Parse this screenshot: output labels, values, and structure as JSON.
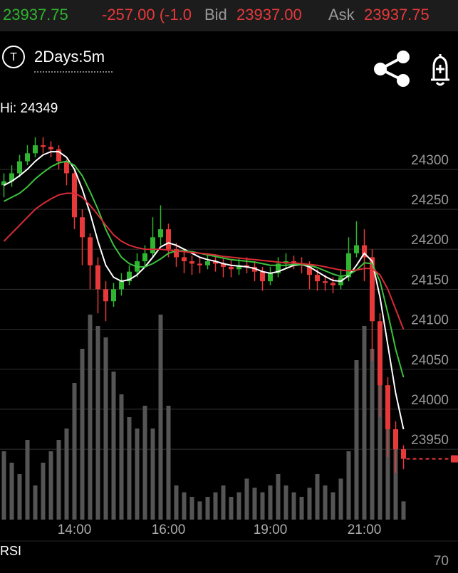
{
  "header": {
    "last": "23937.75",
    "change": "-257.00 (-1.0",
    "bid_label": "Bid",
    "bid": "23937.00",
    "ask_label": "Ask",
    "ask": "23937.75"
  },
  "toolbar": {
    "icon": "T",
    "period": "2Days:5m"
  },
  "chart_data": {
    "type": "candlestick",
    "annotation": "Hi: 24349",
    "categories": [
      null,
      null,
      null,
      null,
      null,
      null,
      null,
      null,
      null,
      "14:00",
      null,
      null,
      null,
      null,
      null,
      null,
      null,
      null,
      null,
      null,
      null,
      "16:00",
      null,
      null,
      null,
      null,
      null,
      null,
      null,
      null,
      null,
      null,
      null,
      null,
      "19:00",
      null,
      null,
      null,
      null,
      null,
      null,
      null,
      null,
      null,
      null,
      null,
      "21:00",
      null,
      null,
      null,
      null,
      null
    ],
    "open": [
      24280,
      24285,
      24295,
      24310,
      24320,
      24330,
      24328,
      24325,
      24310,
      24295,
      24240,
      24215,
      24180,
      24150,
      24135,
      24150,
      24160,
      24172,
      24185,
      24195,
      24215,
      24225,
      24200,
      24190,
      24185,
      24182,
      24180,
      24185,
      24182,
      24178,
      24175,
      24180,
      24178,
      24172,
      24160,
      24170,
      24182,
      24185,
      24182,
      24180,
      24168,
      24160,
      24158,
      24155,
      24165,
      24195,
      24205,
      24190,
      24110,
      24030,
      23975,
      23950
    ],
    "high": [
      24295,
      24305,
      24318,
      24330,
      24340,
      24340,
      24335,
      24330,
      24312,
      24300,
      24250,
      24220,
      24190,
      24160,
      24158,
      24170,
      24180,
      24195,
      24205,
      24240,
      24255,
      24232,
      24208,
      24198,
      24192,
      24190,
      24195,
      24192,
      24188,
      24186,
      24190,
      24190,
      24185,
      24178,
      24178,
      24190,
      24195,
      24192,
      24190,
      24185,
      24175,
      24168,
      24165,
      24175,
      24215,
      24235,
      24225,
      24200,
      24120,
      24040,
      23985,
      23955
    ],
    "low": [
      24265,
      24278,
      24290,
      24305,
      24315,
      24320,
      24315,
      24300,
      24280,
      24225,
      24180,
      24150,
      24120,
      24110,
      24128,
      24142,
      24155,
      24165,
      24178,
      24190,
      24205,
      24190,
      24178,
      24170,
      24168,
      24170,
      24175,
      24172,
      24165,
      24165,
      24168,
      24170,
      24160,
      24148,
      24155,
      24165,
      24175,
      24175,
      24170,
      24150,
      24148,
      24148,
      24145,
      24150,
      24160,
      24190,
      24160,
      24060,
      23990,
      23940,
      23920,
      23925
    ],
    "close": [
      24285,
      24295,
      24310,
      24320,
      24330,
      24328,
      24325,
      24310,
      24295,
      24240,
      24215,
      24180,
      24150,
      24135,
      24150,
      24160,
      24172,
      24185,
      24195,
      24215,
      24225,
      24200,
      24190,
      24185,
      24182,
      24180,
      24185,
      24182,
      24178,
      24175,
      24180,
      24178,
      24172,
      24160,
      24170,
      24182,
      24185,
      24182,
      24180,
      24168,
      24160,
      24158,
      24155,
      24165,
      24195,
      24205,
      24190,
      24110,
      24030,
      23975,
      23950,
      23938
    ],
    "up_color": "#2fb52f",
    "down_color": "#e8393a",
    "volume": {
      "color": "#555555",
      "ylim": [
        0,
        100
      ],
      "values": [
        30,
        25,
        20,
        35,
        15,
        25,
        30,
        35,
        40,
        60,
        75,
        90,
        85,
        80,
        65,
        55,
        45,
        40,
        50,
        40,
        90,
        50,
        15,
        12,
        10,
        8,
        10,
        12,
        15,
        10,
        12,
        18,
        14,
        12,
        15,
        20,
        15,
        12,
        10,
        14,
        20,
        15,
        12,
        18,
        30,
        70,
        85,
        75,
        60,
        45,
        35,
        8
      ]
    },
    "series": [
      {
        "color": "#ffffff",
        "values": [
          24280,
          24285,
          24292,
          24300,
          24310,
          24318,
          24322,
          24322,
          24315,
          24300,
          24275,
          24245,
          24210,
          24180,
          24165,
          24160,
          24162,
          24168,
          24178,
          24190,
          24203,
          24208,
          24205,
          24200,
          24195,
          24190,
          24187,
          24185,
          24182,
          24180,
          24179,
          24178,
          24176,
          24172,
          24170,
          24172,
          24176,
          24180,
          24181,
          24178,
          24172,
          24166,
          24161,
          24160,
          24167,
          24180,
          24195,
          24185,
          24140,
          24080,
          24020,
          23975
        ]
      },
      {
        "color": "#3cc23c",
        "values": [
          24260,
          24265,
          24270,
          24278,
          24288,
          24296,
          24303,
          24308,
          24310,
          24305,
          24292,
          24272,
          24250,
          24225,
          24205,
          24190,
          24182,
          24178,
          24178,
          24182,
          24188,
          24195,
          24198,
          24198,
          24197,
          24195,
          24193,
          24191,
          24189,
          24187,
          24186,
          24185,
          24184,
          24182,
          24180,
          24180,
          24180,
          24181,
          24181,
          24180,
          24177,
          24173,
          24169,
          24166,
          24168,
          24174,
          24183,
          24182,
          24160,
          24120,
          24075,
          24040
        ]
      },
      {
        "color": "#d92b35",
        "values": [
          24210,
          24220,
          24230,
          24240,
          24250,
          24257,
          24263,
          24268,
          24270,
          24270,
          24265,
          24255,
          24243,
          24230,
          24218,
          24210,
          24205,
          24202,
          24200,
          24200,
          24200,
          24199,
          24198,
          24197,
          24196,
          24195,
          24194,
          24193,
          24191,
          24190,
          24189,
          24188,
          24187,
          24186,
          24185,
          24184,
          24183,
          24183,
          24182,
          24181,
          24180,
          24178,
          24176,
          24174,
          24173,
          24174,
          24176,
          24176,
          24168,
          24150,
          24125,
          24100
        ]
      }
    ],
    "ylim": [
      23862,
      24347
    ],
    "yticks": [
      23950,
      24000,
      24050,
      24100,
      24150,
      24200,
      24250,
      24300
    ],
    "grid": true,
    "indicator": {
      "label": "RSI",
      "ticks": [
        70
      ]
    }
  }
}
